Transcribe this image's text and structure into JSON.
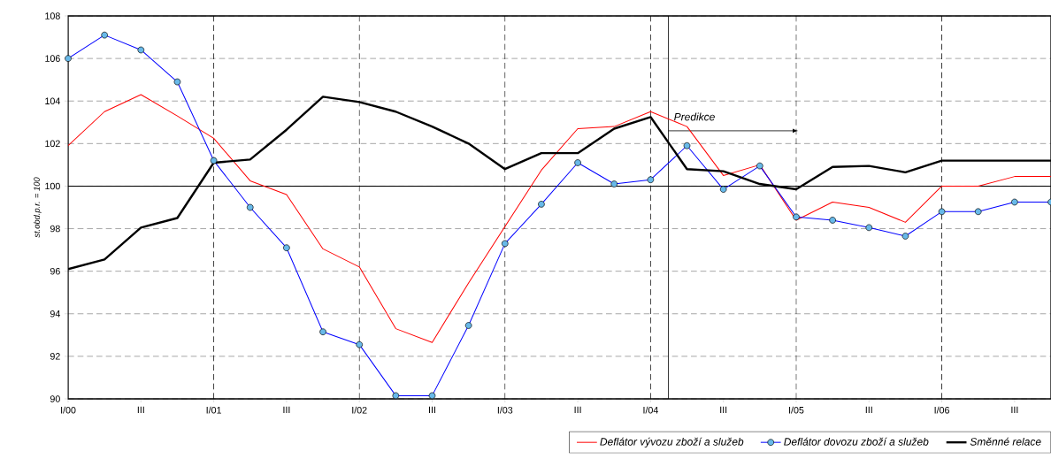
{
  "chart_data": {
    "type": "line",
    "ylabel": "st.obd.p.r. = 100",
    "x": [
      "2000-01",
      "2000-04",
      "2000-07",
      "2000-10",
      "2001-01",
      "2001-04",
      "2001-07",
      "2001-10",
      "2002-01",
      "2002-04",
      "2002-07",
      "2002-10",
      "2003-01",
      "2003-04",
      "2003-07",
      "2003-10",
      "2004-01",
      "2004-04",
      "2004-07",
      "2004-10",
      "2005-01",
      "2005-04",
      "2005-07",
      "2005-10",
      "2006-01",
      "2006-04",
      "2006-07",
      "2006-10"
    ],
    "series": [
      {
        "name": "Deflátor vývozu zboží a služeb",
        "color": "#ff0000",
        "marker": "none",
        "values": [
          101.9,
          103.5,
          104.3,
          103.3,
          102.25,
          100.25,
          99.6,
          97.05,
          96.2,
          93.3,
          92.65,
          95.45,
          98.1,
          100.75,
          102.7,
          102.8,
          103.5,
          102.8,
          100.5,
          101.0,
          98.4,
          99.25,
          99.0,
          98.3,
          100.0,
          100.0,
          100.45,
          100.45
        ]
      },
      {
        "name": "Deflátor dovozu zboží a služeb",
        "color": "#0000ff",
        "marker": "circle",
        "values": [
          106.0,
          107.1,
          106.4,
          104.9,
          101.2,
          99.0,
          97.1,
          93.15,
          92.55,
          90.15,
          90.15,
          93.45,
          97.3,
          99.15,
          101.1,
          100.1,
          100.3,
          101.9,
          99.85,
          100.95,
          98.55,
          98.4,
          98.05,
          97.65,
          98.8,
          98.8,
          99.25,
          99.25
        ]
      },
      {
        "name": "Směnné relace",
        "color": "#000000",
        "marker": "none",
        "values": [
          96.1,
          96.55,
          98.05,
          98.5,
          101.1,
          101.25,
          102.65,
          104.2,
          103.95,
          103.5,
          102.8,
          102.0,
          100.8,
          101.55,
          101.55,
          102.7,
          103.25,
          100.8,
          100.7,
          100.1,
          99.85,
          100.9,
          100.95,
          100.65,
          101.2,
          101.2,
          101.2,
          101.2
        ]
      }
    ],
    "xlim": [
      "2000-01",
      "2006-10"
    ],
    "xticks": [
      {
        "value": "2000-01",
        "label": "I/00"
      },
      {
        "value": "2000-07",
        "label": "III"
      },
      {
        "value": "2001-01",
        "label": "I/01"
      },
      {
        "value": "2001-07",
        "label": "III"
      },
      {
        "value": "2002-01",
        "label": "I/02"
      },
      {
        "value": "2002-07",
        "label": "III"
      },
      {
        "value": "2003-01",
        "label": "I/03"
      },
      {
        "value": "2003-07",
        "label": "III"
      },
      {
        "value": "2004-01",
        "label": "I/04"
      },
      {
        "value": "2004-07",
        "label": "III"
      },
      {
        "value": "2005-01",
        "label": "I/05"
      },
      {
        "value": "2005-07",
        "label": "III"
      },
      {
        "value": "2006-01",
        "label": "I/06"
      },
      {
        "value": "2006-07",
        "label": "III"
      }
    ],
    "ylim": [
      90,
      108
    ],
    "yticks": [
      90,
      92,
      94,
      96,
      98,
      100,
      102,
      104,
      106,
      108
    ],
    "grid": "y",
    "legend": "bottom right",
    "line_style": "solid",
    "ref_lines": [
      {
        "axis": "x",
        "value": "2001-01",
        "line_style": "dashed"
      },
      {
        "axis": "x",
        "value": "2002-01",
        "line_style": "dashed"
      },
      {
        "axis": "x",
        "value": "2003-01",
        "line_style": "dashed"
      },
      {
        "axis": "x",
        "value": "2004-01",
        "line_style": "dashed"
      },
      {
        "axis": "x",
        "value": "2005-01",
        "line_style": "dashed"
      },
      {
        "axis": "x",
        "value": "2006-01",
        "line_style": "dashed"
      },
      {
        "axis": "y",
        "value": 100,
        "line_style": "solid"
      },
      {
        "axis": "x",
        "value": "2004-02-15",
        "line_style": "solid",
        "label": "Predikce"
      }
    ]
  }
}
